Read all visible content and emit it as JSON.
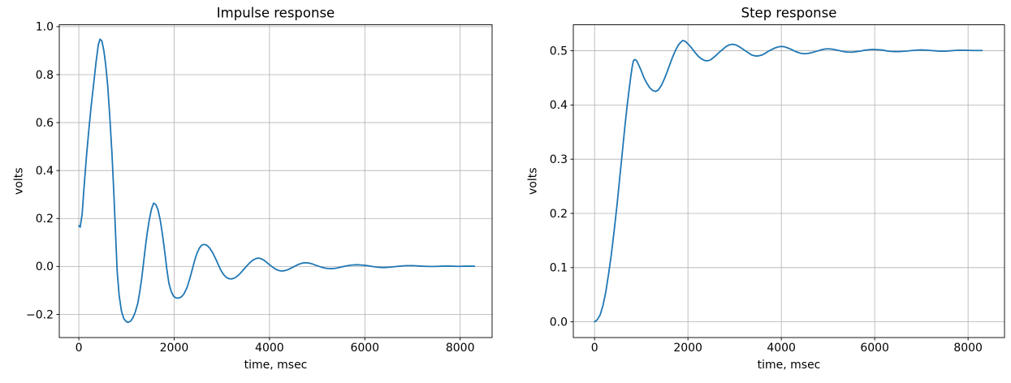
{
  "figure": {
    "background": "#ffffff"
  },
  "chart_data": [
    {
      "type": "line",
      "title": "Impulse response",
      "xlabel": "time, msec",
      "ylabel": "volts",
      "xlim": [
        -410,
        8670
      ],
      "ylim": [
        -0.2965,
        1.008
      ],
      "xticks": [
        0,
        2000,
        4000,
        6000,
        8000
      ],
      "xtick_labels": [
        "0",
        "2000",
        "4000",
        "6000",
        "8000"
      ],
      "yticks": [
        -0.2,
        0.0,
        0.2,
        0.4,
        0.6,
        0.8,
        1.0
      ],
      "ytick_labels": [
        "−0.2",
        "0.0",
        "0.2",
        "0.4",
        "0.6",
        "0.8",
        "1.0"
      ],
      "grid": true,
      "grid_color": "#b0b0b0",
      "spine_color": "#000000",
      "line_color": "#1f77b4",
      "line_width": 1.8,
      "legend": "none",
      "series": [
        {
          "name": "impulse_response",
          "points": [
            [
              0,
              0.17
            ],
            [
              30,
              0.164
            ],
            [
              70,
              0.22
            ],
            [
              110,
              0.33
            ],
            [
              160,
              0.46
            ],
            [
              210,
              0.57
            ],
            [
              260,
              0.67
            ],
            [
              310,
              0.76
            ],
            [
              360,
              0.85
            ],
            [
              410,
              0.925
            ],
            [
              445,
              0.948
            ],
            [
              485,
              0.94
            ],
            [
              525,
              0.9
            ],
            [
              565,
              0.84
            ],
            [
              605,
              0.755
            ],
            [
              650,
              0.625
            ],
            [
              695,
              0.47
            ],
            [
              735,
              0.305
            ],
            [
              775,
              0.115
            ],
            [
              805,
              -0.02
            ],
            [
              845,
              -0.12
            ],
            [
              895,
              -0.187
            ],
            [
              945,
              -0.218
            ],
            [
              1000,
              -0.231
            ],
            [
              1035,
              -0.233
            ],
            [
              1085,
              -0.228
            ],
            [
              1135,
              -0.214
            ],
            [
              1185,
              -0.19
            ],
            [
              1235,
              -0.155
            ],
            [
              1275,
              -0.11
            ],
            [
              1315,
              -0.055
            ],
            [
              1355,
              0.01
            ],
            [
              1395,
              0.08
            ],
            [
              1435,
              0.14
            ],
            [
              1480,
              0.196
            ],
            [
              1525,
              0.24
            ],
            [
              1570,
              0.264
            ],
            [
              1615,
              0.258
            ],
            [
              1660,
              0.237
            ],
            [
              1705,
              0.196
            ],
            [
              1750,
              0.14
            ],
            [
              1800,
              0.065
            ],
            [
              1845,
              -0.01
            ],
            [
              1890,
              -0.07
            ],
            [
              1940,
              -0.105
            ],
            [
              1990,
              -0.125
            ],
            [
              2040,
              -0.131
            ],
            [
              2090,
              -0.132
            ],
            [
              2150,
              -0.127
            ],
            [
              2210,
              -0.113
            ],
            [
              2270,
              -0.088
            ],
            [
              2330,
              -0.05
            ],
            [
              2380,
              -0.012
            ],
            [
              2430,
              0.025
            ],
            [
              2480,
              0.055
            ],
            [
              2530,
              0.077
            ],
            [
              2580,
              0.089
            ],
            [
              2625,
              0.092
            ],
            [
              2680,
              0.089
            ],
            [
              2740,
              0.078
            ],
            [
              2800,
              0.06
            ],
            [
              2860,
              0.036
            ],
            [
              2920,
              0.01
            ],
            [
              2970,
              -0.012
            ],
            [
              3030,
              -0.032
            ],
            [
              3090,
              -0.045
            ],
            [
              3150,
              -0.051
            ],
            [
              3205,
              -0.052
            ],
            [
              3270,
              -0.048
            ],
            [
              3340,
              -0.038
            ],
            [
              3410,
              -0.024
            ],
            [
              3480,
              -0.008
            ],
            [
              3530,
              0.004
            ],
            [
              3590,
              0.016
            ],
            [
              3655,
              0.027
            ],
            [
              3720,
              0.033
            ],
            [
              3765,
              0.035
            ],
            [
              3830,
              0.032
            ],
            [
              3900,
              0.024
            ],
            [
              3970,
              0.012
            ],
            [
              4040,
              0.001
            ],
            [
              4110,
              -0.009
            ],
            [
              4180,
              -0.016
            ],
            [
              4250,
              -0.019
            ],
            [
              4320,
              -0.0175
            ],
            [
              4390,
              -0.013
            ],
            [
              4460,
              -0.006
            ],
            [
              4530,
              0.001
            ],
            [
              4600,
              0.008
            ],
            [
              4670,
              0.013
            ],
            [
              4740,
              0.0155
            ],
            [
              4820,
              0.0145
            ],
            [
              4900,
              0.0105
            ],
            [
              4980,
              0.0045
            ],
            [
              5060,
              -0.001
            ],
            [
              5140,
              -0.006
            ],
            [
              5220,
              -0.0085
            ],
            [
              5290,
              -0.009
            ],
            [
              5370,
              -0.008
            ],
            [
              5450,
              -0.005
            ],
            [
              5530,
              -0.001
            ],
            [
              5610,
              0.002
            ],
            [
              5690,
              0.005
            ],
            [
              5770,
              0.0065
            ],
            [
              5850,
              0.007
            ],
            [
              5930,
              0.006
            ],
            [
              6010,
              0.0045
            ],
            [
              6090,
              0.002
            ],
            [
              6170,
              -0.0005
            ],
            [
              6250,
              -0.0025
            ],
            [
              6330,
              -0.004
            ],
            [
              6410,
              -0.0045
            ],
            [
              6490,
              -0.0035
            ],
            [
              6570,
              -0.002
            ],
            [
              6650,
              -0.0005
            ],
            [
              6730,
              0.001
            ],
            [
              6810,
              0.0025
            ],
            [
              6890,
              0.0035
            ],
            [
              6970,
              0.0035
            ],
            [
              7050,
              0.003
            ],
            [
              7130,
              0.002
            ],
            [
              7210,
              0.001
            ],
            [
              7290,
              0.0005
            ],
            [
              7370,
              0.0
            ],
            [
              7450,
              0.0
            ],
            [
              7530,
              0.0005
            ],
            [
              7610,
              0.001
            ],
            [
              7690,
              0.0015
            ],
            [
              7770,
              0.0015
            ],
            [
              7850,
              0.001
            ],
            [
              7930,
              0.0005
            ],
            [
              8010,
              0.0005
            ],
            [
              8090,
              0.001
            ],
            [
              8170,
              0.001
            ],
            [
              8300,
              0.001
            ]
          ]
        }
      ]
    },
    {
      "type": "line",
      "title": "Step response",
      "xlabel": "time, msec",
      "ylabel": "volts",
      "xlim": [
        -455,
        8780
      ],
      "ylim": [
        -0.029,
        0.548
      ],
      "xticks": [
        0,
        2000,
        4000,
        6000,
        8000
      ],
      "xtick_labels": [
        "0",
        "2000",
        "4000",
        "6000",
        "8000"
      ],
      "yticks": [
        0.0,
        0.1,
        0.2,
        0.3,
        0.4,
        0.5
      ],
      "ytick_labels": [
        "0.0",
        "0.1",
        "0.2",
        "0.3",
        "0.4",
        "0.5"
      ],
      "grid": true,
      "grid_color": "#b0b0b0",
      "spine_color": "#000000",
      "line_color": "#1f77b4",
      "line_width": 1.8,
      "legend": "none",
      "series": [
        {
          "name": "step_response",
          "points": [
            [
              0,
              0.0
            ],
            [
              60,
              0.004
            ],
            [
              120,
              0.013
            ],
            [
              180,
              0.03
            ],
            [
              240,
              0.055
            ],
            [
              300,
              0.088
            ],
            [
              360,
              0.125
            ],
            [
              420,
              0.168
            ],
            [
              480,
              0.215
            ],
            [
              540,
              0.266
            ],
            [
              600,
              0.318
            ],
            [
              650,
              0.36
            ],
            [
              700,
              0.4
            ],
            [
              740,
              0.428
            ],
            [
              780,
              0.455
            ],
            [
              810,
              0.472
            ],
            [
              830,
              0.481
            ],
            [
              860,
              0.484
            ],
            [
              900,
              0.482
            ],
            [
              950,
              0.473
            ],
            [
              1000,
              0.463
            ],
            [
              1060,
              0.45
            ],
            [
              1120,
              0.44
            ],
            [
              1180,
              0.432
            ],
            [
              1240,
              0.427
            ],
            [
              1310,
              0.425
            ],
            [
              1370,
              0.428
            ],
            [
              1430,
              0.436
            ],
            [
              1490,
              0.447
            ],
            [
              1550,
              0.46
            ],
            [
              1610,
              0.474
            ],
            [
              1670,
              0.488
            ],
            [
              1730,
              0.5
            ],
            [
              1790,
              0.51
            ],
            [
              1850,
              0.516
            ],
            [
              1890,
              0.519
            ],
            [
              1950,
              0.517
            ],
            [
              2010,
              0.512
            ],
            [
              2080,
              0.505
            ],
            [
              2150,
              0.497
            ],
            [
              2220,
              0.49
            ],
            [
              2290,
              0.485
            ],
            [
              2360,
              0.482
            ],
            [
              2420,
              0.4815
            ],
            [
              2480,
              0.483
            ],
            [
              2540,
              0.487
            ],
            [
              2610,
              0.492
            ],
            [
              2680,
              0.498
            ],
            [
              2750,
              0.503
            ],
            [
              2820,
              0.508
            ],
            [
              2890,
              0.511
            ],
            [
              2950,
              0.512
            ],
            [
              3020,
              0.511
            ],
            [
              3090,
              0.508
            ],
            [
              3160,
              0.504
            ],
            [
              3230,
              0.5
            ],
            [
              3300,
              0.496
            ],
            [
              3370,
              0.492
            ],
            [
              3440,
              0.4905
            ],
            [
              3510,
              0.4905
            ],
            [
              3580,
              0.492
            ],
            [
              3650,
              0.495
            ],
            [
              3720,
              0.499
            ],
            [
              3790,
              0.502
            ],
            [
              3860,
              0.505
            ],
            [
              3930,
              0.507
            ],
            [
              3990,
              0.508
            ],
            [
              4060,
              0.5075
            ],
            [
              4130,
              0.5055
            ],
            [
              4200,
              0.503
            ],
            [
              4270,
              0.5
            ],
            [
              4340,
              0.4975
            ],
            [
              4410,
              0.4955
            ],
            [
              4490,
              0.4945
            ],
            [
              4570,
              0.495
            ],
            [
              4650,
              0.4965
            ],
            [
              4730,
              0.4985
            ],
            [
              4810,
              0.5005
            ],
            [
              4890,
              0.5025
            ],
            [
              4960,
              0.5035
            ],
            [
              5040,
              0.5035
            ],
            [
              5120,
              0.5025
            ],
            [
              5200,
              0.501
            ],
            [
              5280,
              0.4995
            ],
            [
              5360,
              0.498
            ],
            [
              5440,
              0.4975
            ],
            [
              5530,
              0.4975
            ],
            [
              5610,
              0.4985
            ],
            [
              5700,
              0.4995
            ],
            [
              5790,
              0.501
            ],
            [
              5880,
              0.502
            ],
            [
              5970,
              0.5025
            ],
            [
              6060,
              0.502
            ],
            [
              6150,
              0.5015
            ],
            [
              6240,
              0.5
            ],
            [
              6330,
              0.499
            ],
            [
              6420,
              0.4985
            ],
            [
              6510,
              0.4985
            ],
            [
              6600,
              0.499
            ],
            [
              6700,
              0.4995
            ],
            [
              6800,
              0.5005
            ],
            [
              6900,
              0.5012
            ],
            [
              7000,
              0.5015
            ],
            [
              7100,
              0.5012
            ],
            [
              7200,
              0.5005
            ],
            [
              7300,
              0.4998
            ],
            [
              7400,
              0.4993
            ],
            [
              7500,
              0.4993
            ],
            [
              7600,
              0.4998
            ],
            [
              7700,
              0.5005
            ],
            [
              7800,
              0.501
            ],
            [
              7900,
              0.501
            ],
            [
              8000,
              0.5008
            ],
            [
              8100,
              0.5005
            ],
            [
              8200,
              0.5005
            ],
            [
              8300,
              0.5005
            ]
          ]
        }
      ]
    }
  ]
}
